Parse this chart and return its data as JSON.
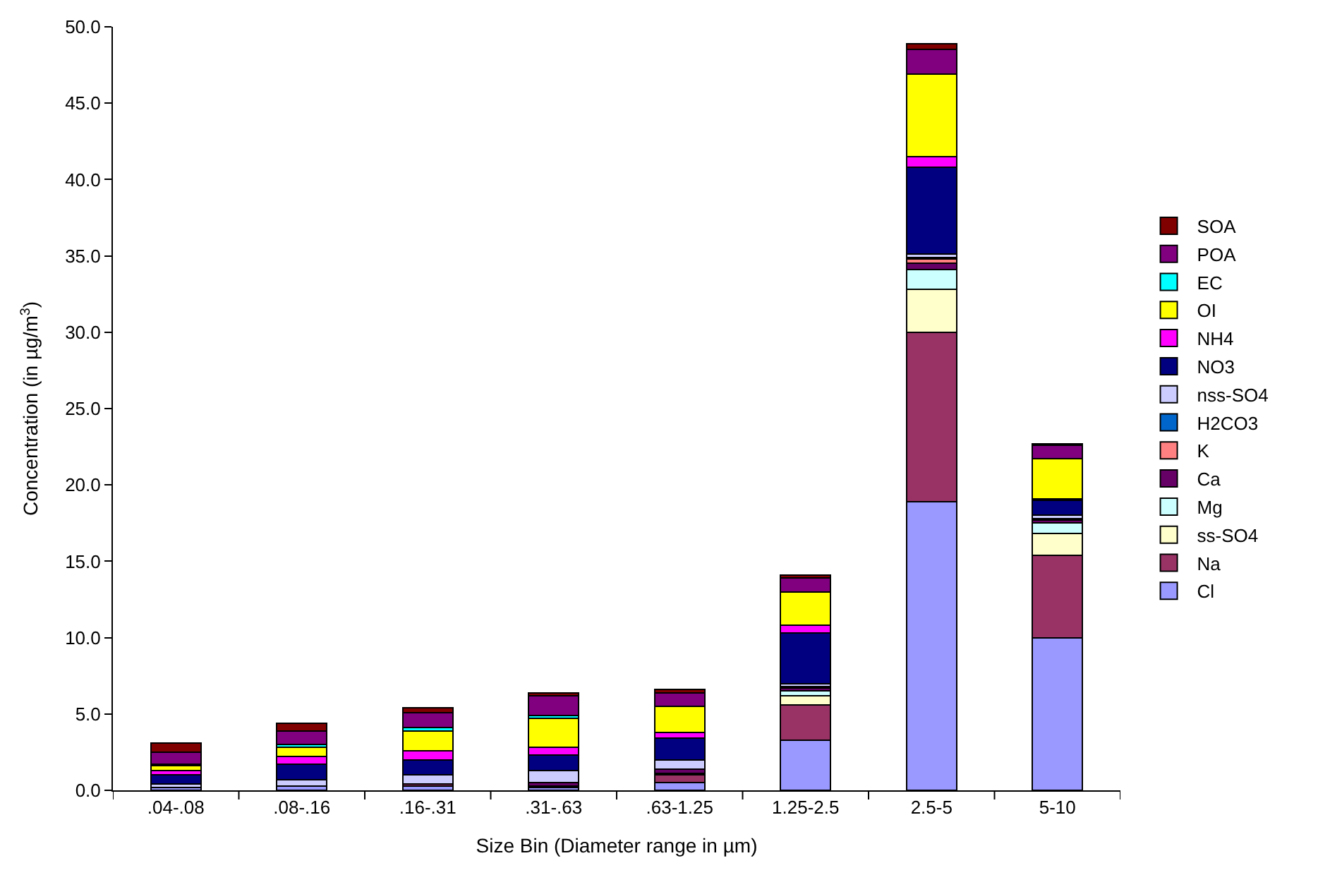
{
  "chart_data": {
    "type": "bar",
    "stacked": true,
    "xlabel": "Size Bin (Diameter range in µm)",
    "ylabel": "Concentration (in µg/m$^{3}$)",
    "categories": [
      ".04-.08",
      ".08-.16",
      ".16-.31",
      ".31-.63",
      ".63-1.25",
      "1.25-2.5",
      "2.5-5",
      "5-10"
    ],
    "ylim": [
      0,
      50
    ],
    "yticks": [
      {
        "value": 0,
        "label": "0.0"
      },
      {
        "value": 5,
        "label": "5.0"
      },
      {
        "value": 10,
        "label": "10.0"
      },
      {
        "value": 15,
        "label": "15.0"
      },
      {
        "value": 20,
        "label": "20.0"
      },
      {
        "value": 25,
        "label": "25.0"
      },
      {
        "value": 30,
        "label": "30.0"
      },
      {
        "value": 35,
        "label": "35.0"
      },
      {
        "value": 40,
        "label": "40.0"
      },
      {
        "value": 45,
        "label": "45.0"
      },
      {
        "value": 50,
        "label": "50.0"
      }
    ],
    "legend": "right",
    "series": [
      {
        "name": "Cl",
        "color": "#9999ff",
        "values": [
          0.2,
          0.3,
          0.3,
          0.2,
          0.5,
          3.3,
          18.9,
          10.0
        ]
      },
      {
        "name": "Na",
        "color": "#993366",
        "values": [
          0,
          0,
          0.1,
          0.1,
          0.5,
          2.3,
          11.1,
          5.4
        ]
      },
      {
        "name": "ss-SO4",
        "color": "#ffffcc",
        "values": [
          0,
          0,
          0,
          0,
          0.1,
          0.6,
          2.8,
          1.4
        ]
      },
      {
        "name": "Mg",
        "color": "#ccffff",
        "values": [
          0,
          0,
          0,
          0,
          0,
          0.3,
          1.3,
          0.7
        ]
      },
      {
        "name": "Ca",
        "color": "#660066",
        "values": [
          0,
          0,
          0,
          0.2,
          0.3,
          0.2,
          0.4,
          0.2
        ]
      },
      {
        "name": "K",
        "color": "#ff8080",
        "values": [
          0,
          0,
          0,
          0,
          0,
          0.1,
          0.3,
          0.1
        ]
      },
      {
        "name": "H2CO3",
        "color": "#0066cc",
        "values": [
          0,
          0,
          0,
          0,
          0,
          0,
          0.1,
          0
        ]
      },
      {
        "name": "nss-SO4",
        "color": "#ccccff",
        "values": [
          0.2,
          0.4,
          0.6,
          0.8,
          0.6,
          0.2,
          0.2,
          0.2
        ]
      },
      {
        "name": "NO3",
        "color": "#000080",
        "values": [
          0.6,
          1.0,
          1.0,
          1.0,
          1.4,
          3.3,
          5.7,
          1.0
        ]
      },
      {
        "name": "NH4",
        "color": "#ff00ff",
        "values": [
          0.3,
          0.5,
          0.6,
          0.5,
          0.4,
          0.5,
          0.7,
          0.1
        ]
      },
      {
        "name": "OI",
        "color": "#ffff00",
        "values": [
          0.3,
          0.6,
          1.3,
          1.9,
          1.7,
          2.2,
          5.4,
          2.6
        ]
      },
      {
        "name": "EC",
        "color": "#00ffff",
        "values": [
          0.1,
          0.2,
          0.2,
          0.2,
          0,
          0,
          0,
          0
        ]
      },
      {
        "name": "POA",
        "color": "#800080",
        "values": [
          0.8,
          0.9,
          1.0,
          1.3,
          0.9,
          0.9,
          1.6,
          0.9
        ]
      },
      {
        "name": "SOA",
        "color": "#800000",
        "values": [
          0.6,
          0.5,
          0.3,
          0.2,
          0.2,
          0.2,
          0.4,
          0.1
        ]
      }
    ]
  }
}
